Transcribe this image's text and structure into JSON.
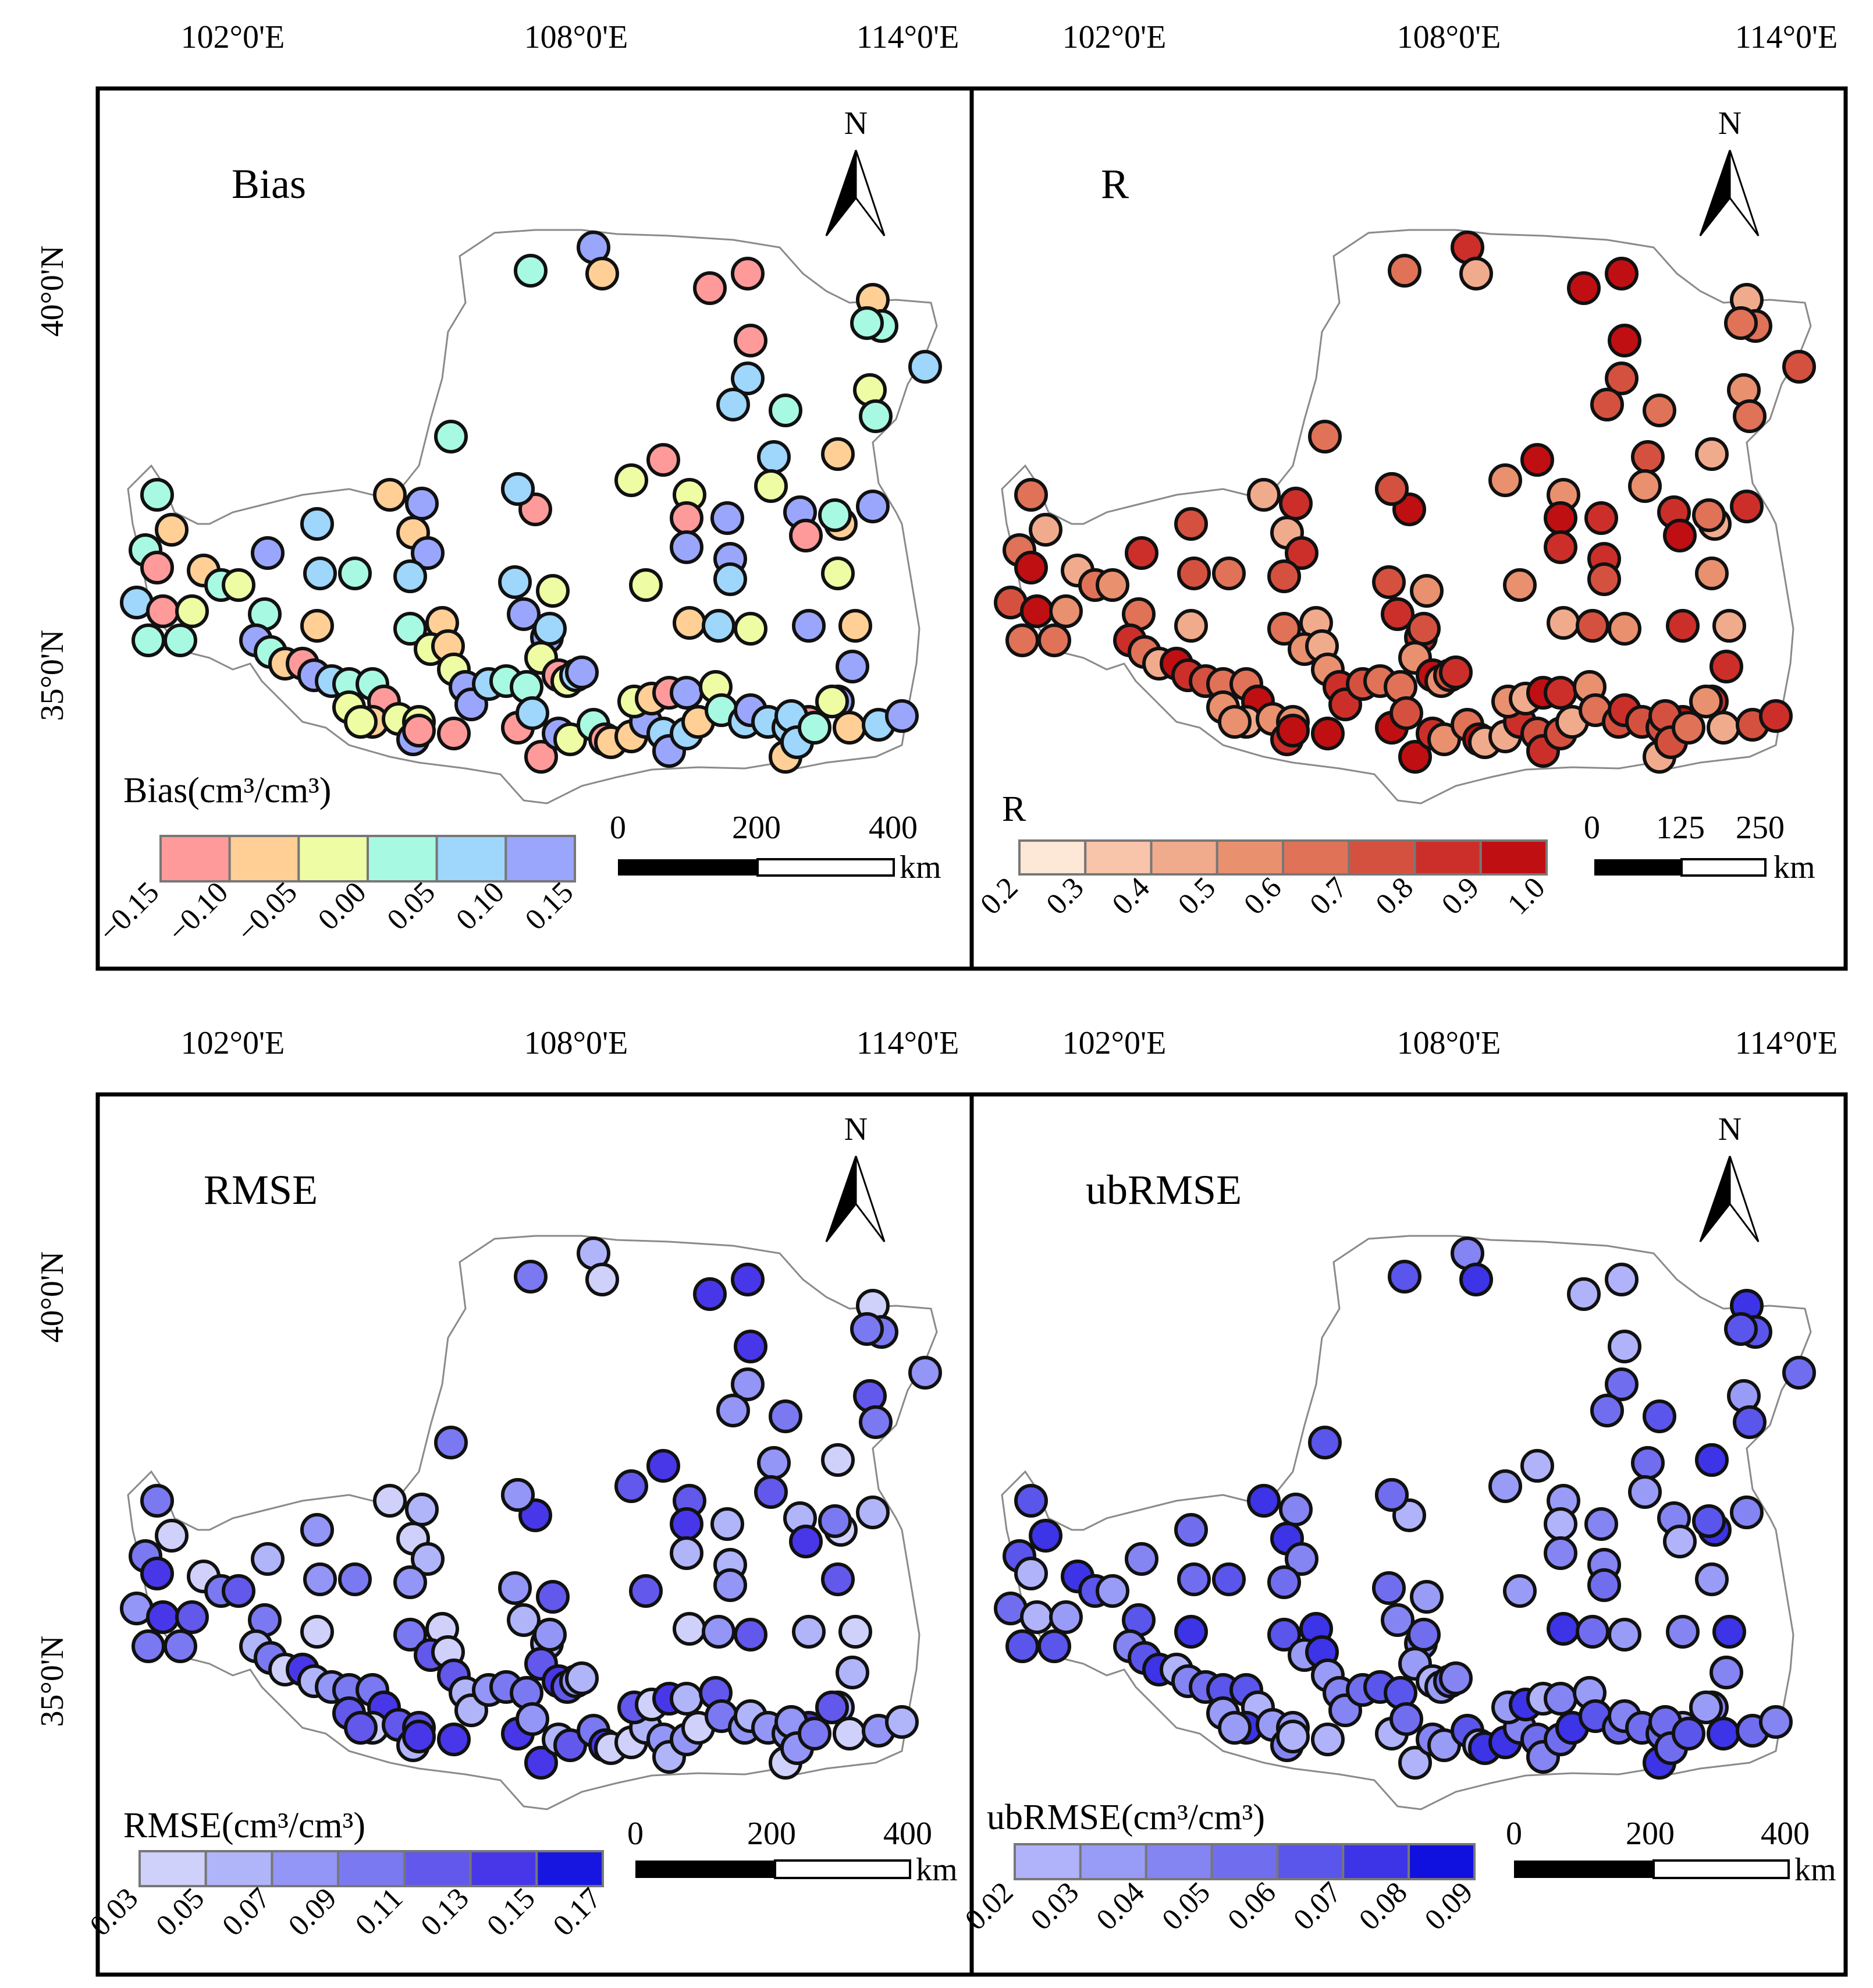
{
  "axes": {
    "lon_labels": [
      "102°0'E",
      "108°0'E",
      "114°0'E"
    ],
    "lat_labels": [
      "40°0'N",
      "35°0'N"
    ]
  },
  "north_label": "N",
  "scale_unit": "km",
  "panels": [
    {
      "id": "bias",
      "title": "Bias",
      "legend_title": "Bias(cm³/cm³)",
      "legend_colors": [
        "#ff9a9a",
        "#ffcf96",
        "#eefca4",
        "#a8f9e2",
        "#9fd6fb",
        "#9aa6fb"
      ],
      "legend_ticks": [
        "−0.15",
        "−0.10",
        "−0.05",
        "0.00",
        "0.05",
        "0.10",
        "0.15"
      ],
      "scale_ticks": [
        "0",
        "200",
        "400"
      ]
    },
    {
      "id": "r",
      "title": "R",
      "legend_title": "R",
      "legend_colors": [
        "#fde7d7",
        "#f8c4aa",
        "#f0ab8d",
        "#e9906f",
        "#e07258",
        "#d5513f",
        "#cc2f2a",
        "#c00f12"
      ],
      "legend_ticks": [
        "0.2",
        "0.3",
        "0.4",
        "0.5",
        "0.6",
        "0.7",
        "0.8",
        "0.9",
        "1.0"
      ],
      "scale_ticks": [
        "0",
        "125",
        "250"
      ]
    },
    {
      "id": "rmse",
      "title": "RMSE",
      "legend_title": "RMSE(cm³/cm³)",
      "legend_colors": [
        "#cfd1fb",
        "#b0b4f9",
        "#9396f6",
        "#7a79f1",
        "#6258ec",
        "#4837e8",
        "#1716e0"
      ],
      "legend_ticks": [
        "0.03",
        "0.05",
        "0.07",
        "0.09",
        "0.11",
        "0.13",
        "0.15",
        "0.17"
      ],
      "scale_ticks": [
        "0",
        "200",
        "400"
      ]
    },
    {
      "id": "ubrmse",
      "title": "ubRMSE",
      "legend_title": "ubRMSE(cm³/cm³)",
      "legend_colors": [
        "#b0b3f9",
        "#999cf6",
        "#8584f3",
        "#706eef",
        "#5a55eb",
        "#3c34e6",
        "#1010df"
      ],
      "legend_ticks": [
        "0.02",
        "0.03",
        "0.04",
        "0.05",
        "0.06",
        "0.07",
        "0.08",
        "0.09"
      ],
      "scale_ticks": [
        "0",
        "200",
        "400"
      ]
    }
  ],
  "colors": {
    "frame": "#000000",
    "boundary": "#8a8a8a",
    "marker_stroke": "#111111"
  }
}
